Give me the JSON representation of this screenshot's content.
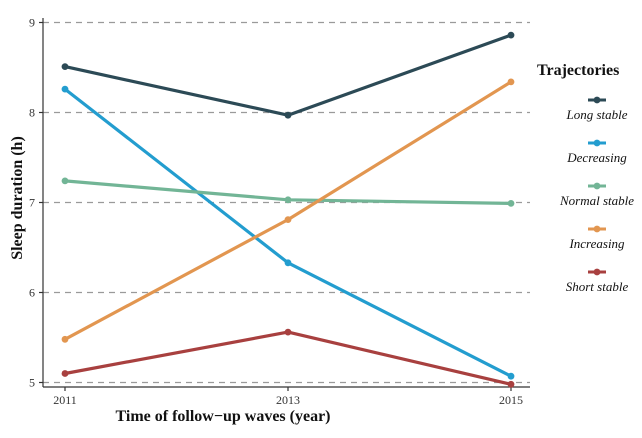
{
  "chart_data": {
    "type": "line",
    "title": "",
    "xlabel": "Time of follow−up waves (year)",
    "ylabel": "Sleep duration (h)",
    "x": [
      2011,
      2013,
      2015
    ],
    "x_tick_labels": [
      "2011",
      "2013",
      "2015"
    ],
    "y_ticks": [
      5,
      6,
      7,
      8,
      9
    ],
    "ylim": [
      4.95,
      9.05
    ],
    "grid": "horizontal dashed",
    "legend": {
      "title": "Trajectories",
      "placement": "right"
    },
    "series": [
      {
        "name": "Long stable",
        "color": "#2c4a56",
        "values": [
          8.51,
          7.97,
          8.86
        ]
      },
      {
        "name": "Decreasing",
        "color": "#239dcf",
        "values": [
          8.26,
          6.33,
          5.07
        ]
      },
      {
        "name": "Normal stable",
        "color": "#72b596",
        "values": [
          7.24,
          7.03,
          6.99
        ]
      },
      {
        "name": "Increasing",
        "color": "#e29650",
        "values": [
          5.48,
          6.81,
          8.34
        ]
      },
      {
        "name": "Short stable",
        "color": "#a8403f",
        "values": [
          5.1,
          5.56,
          4.98
        ]
      }
    ]
  }
}
